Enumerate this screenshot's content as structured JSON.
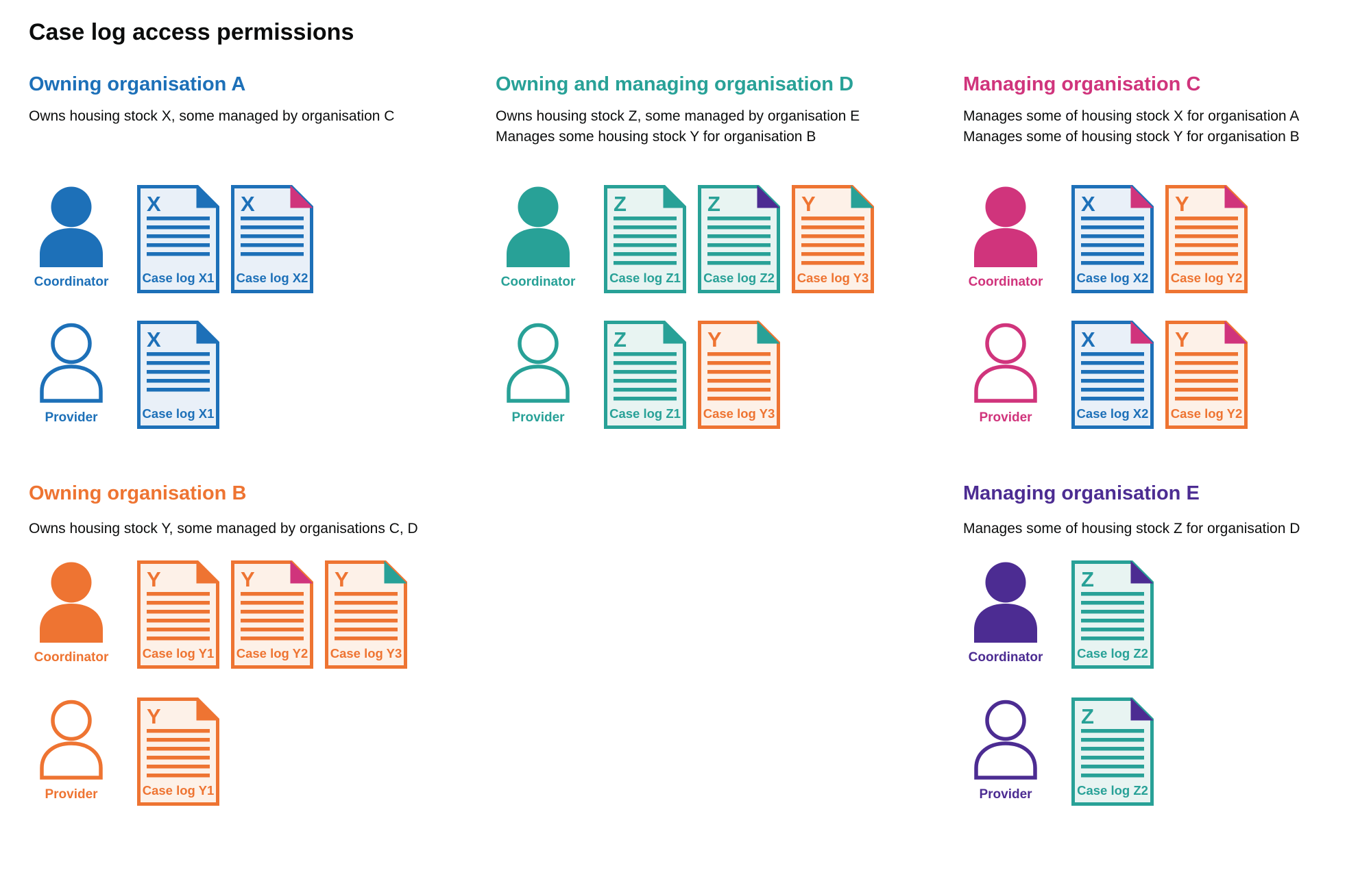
{
  "page_title": "Case log access permissions",
  "palette": {
    "text": "#0b0c0c",
    "blue": "#1d70b8",
    "teal": "#28a197",
    "pink": "#d0347c",
    "orange": "#ee7432",
    "purple": "#4c2c92",
    "blue_tint": "#e9f0f8",
    "teal_tint": "#e8f4f2",
    "orange_tint": "#fdf1e8"
  },
  "sections": [
    {
      "id": "A",
      "title": "Owning organisation A",
      "color": "#1d70b8",
      "description": [
        "Owns housing stock X, some managed by organisation C"
      ],
      "rows": [
        {
          "role": "Coordinator",
          "style": "filled",
          "docs": [
            {
              "letter": "X",
              "label": "Case log X1",
              "color": "#1d70b8",
              "tint": "#e9f0f8",
              "fold": "#1d70b8",
              "lines": 5
            },
            {
              "letter": "X",
              "label": "Case log X2",
              "color": "#1d70b8",
              "tint": "#e9f0f8",
              "fold": "#d0347c",
              "lines": 5
            }
          ]
        },
        {
          "role": "Provider",
          "style": "outline",
          "docs": [
            {
              "letter": "X",
              "label": "Case log X1",
              "color": "#1d70b8",
              "tint": "#e9f0f8",
              "fold": "#1d70b8",
              "lines": 5
            }
          ]
        }
      ]
    },
    {
      "id": "D",
      "title": "Owning and managing organisation D",
      "color": "#28a197",
      "description": [
        "Owns housing stock Z, some managed by organisation E",
        "Manages some housing stock Y for organisation B"
      ],
      "rows": [
        {
          "role": "Coordinator",
          "style": "filled",
          "docs": [
            {
              "letter": "Z",
              "label": "Case log Z1",
              "color": "#28a197",
              "tint": "#e8f4f2",
              "fold": "#28a197",
              "lines": 6
            },
            {
              "letter": "Z",
              "label": "Case log Z2",
              "color": "#28a197",
              "tint": "#e8f4f2",
              "fold": "#4c2c92",
              "lines": 6
            },
            {
              "letter": "Y",
              "label": "Case log Y3",
              "color": "#ee7432",
              "tint": "#fdf1e8",
              "fold": "#28a197",
              "lines": 6
            }
          ]
        },
        {
          "role": "Provider",
          "style": "outline",
          "docs": [
            {
              "letter": "Z",
              "label": "Case log Z1",
              "color": "#28a197",
              "tint": "#e8f4f2",
              "fold": "#28a197",
              "lines": 6
            },
            {
              "letter": "Y",
              "label": "Case log Y3",
              "color": "#ee7432",
              "tint": "#fdf1e8",
              "fold": "#28a197",
              "lines": 6
            }
          ]
        }
      ]
    },
    {
      "id": "C",
      "title": "Managing organisation C",
      "color": "#d0347c",
      "description": [
        "Manages some of housing stock X for organisation A",
        "Manages some of housing stock Y for organisation B"
      ],
      "rows": [
        {
          "role": "Coordinator",
          "style": "filled",
          "docs": [
            {
              "letter": "X",
              "label": "Case log X2",
              "color": "#1d70b8",
              "tint": "#e9f0f8",
              "fold": "#d0347c",
              "lines": 6
            },
            {
              "letter": "Y",
              "label": "Case log Y2",
              "color": "#ee7432",
              "tint": "#fdf1e8",
              "fold": "#d0347c",
              "lines": 6
            }
          ]
        },
        {
          "role": "Provider",
          "style": "outline",
          "docs": [
            {
              "letter": "X",
              "label": "Case log X2",
              "color": "#1d70b8",
              "tint": "#e9f0f8",
              "fold": "#d0347c",
              "lines": 6
            },
            {
              "letter": "Y",
              "label": "Case log Y2",
              "color": "#ee7432",
              "tint": "#fdf1e8",
              "fold": "#d0347c",
              "lines": 6
            }
          ]
        }
      ]
    },
    {
      "id": "B",
      "title": "Owning organisation B",
      "color": "#ee7432",
      "description": [
        "Owns housing stock Y, some managed by organisations C, D"
      ],
      "rows": [
        {
          "role": "Coordinator",
          "style": "filled",
          "docs": [
            {
              "letter": "Y",
              "label": "Case log Y1",
              "color": "#ee7432",
              "tint": "#fdf1e8",
              "fold": "#ee7432",
              "lines": 6
            },
            {
              "letter": "Y",
              "label": "Case log Y2",
              "color": "#ee7432",
              "tint": "#fdf1e8",
              "fold": "#d0347c",
              "lines": 6
            },
            {
              "letter": "Y",
              "label": "Case log Y3",
              "color": "#ee7432",
              "tint": "#fdf1e8",
              "fold": "#28a197",
              "lines": 6
            }
          ]
        },
        {
          "role": "Provider",
          "style": "outline",
          "docs": [
            {
              "letter": "Y",
              "label": "Case log Y1",
              "color": "#ee7432",
              "tint": "#fdf1e8",
              "fold": "#ee7432",
              "lines": 6
            }
          ]
        }
      ]
    },
    {
      "id": "E",
      "title": "Managing organisation E",
      "color": "#4c2c92",
      "description": [
        "Manages some of housing stock Z for organisation D"
      ],
      "rows": [
        {
          "role": "Coordinator",
          "style": "filled",
          "docs": [
            {
              "letter": "Z",
              "label": "Case log Z2",
              "color": "#28a197",
              "tint": "#e8f4f2",
              "fold": "#4c2c92",
              "lines": 6
            }
          ]
        },
        {
          "role": "Provider",
          "style": "outline",
          "docs": [
            {
              "letter": "Z",
              "label": "Case log Z2",
              "color": "#28a197",
              "tint": "#e8f4f2",
              "fold": "#4c2c92",
              "lines": 6
            }
          ]
        }
      ]
    }
  ]
}
